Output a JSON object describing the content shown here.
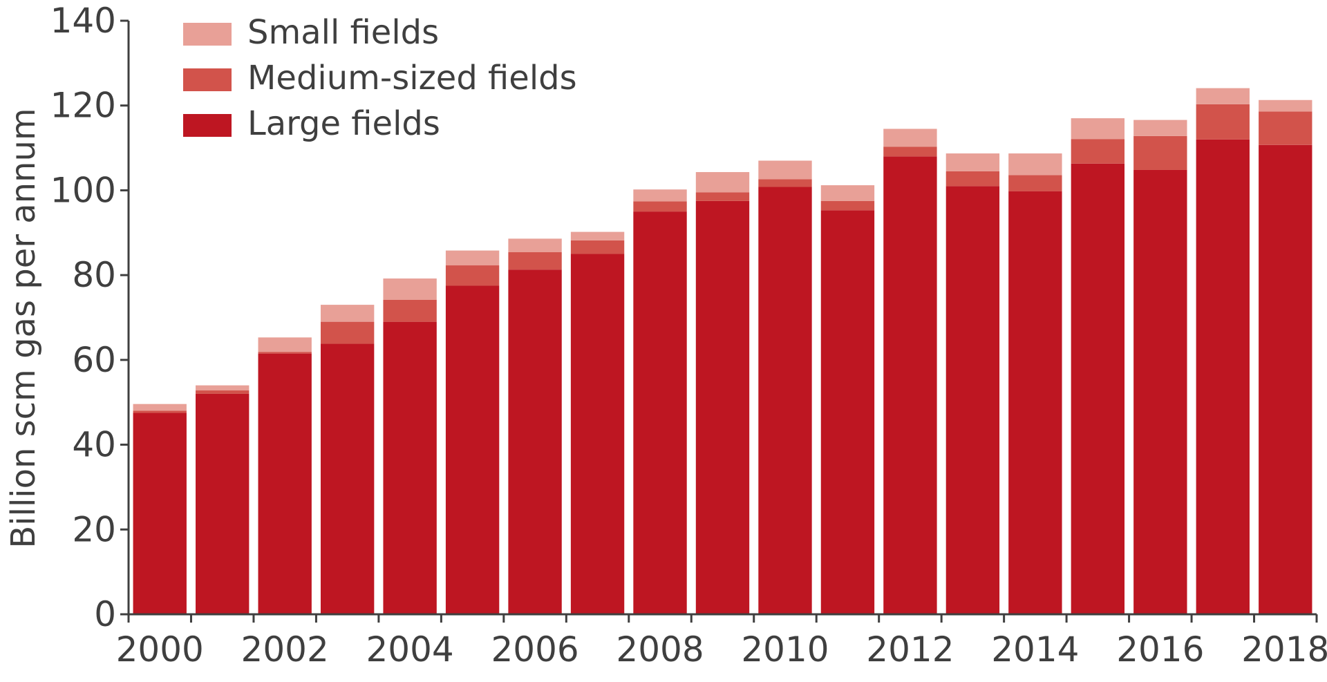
{
  "chart_data": {
    "type": "bar",
    "stacked": true,
    "categories": [
      "2000",
      "2001",
      "2002",
      "2003",
      "2004",
      "2005",
      "2006",
      "2007",
      "2008",
      "2009",
      "2010",
      "2011",
      "2012",
      "2013",
      "2014",
      "2015",
      "2016",
      "2017",
      "2018"
    ],
    "x_tick_labels": [
      "2000",
      "2002",
      "2004",
      "2006",
      "2008",
      "2010",
      "2012",
      "2014",
      "2016",
      "2018"
    ],
    "series": [
      {
        "name": "Large fields",
        "color": "#be1622",
        "values": [
          47.5,
          52.0,
          61.5,
          63.8,
          69.0,
          77.5,
          81.3,
          85.0,
          95.0,
          97.5,
          100.8,
          95.3,
          108.0,
          101.0,
          99.8,
          106.3,
          104.8,
          112.0,
          110.7
        ]
      },
      {
        "name": "Medium-sized fields",
        "color": "#d2534b",
        "values": [
          0.5,
          0.8,
          0.4,
          5.2,
          5.2,
          4.8,
          4.1,
          3.2,
          2.4,
          2.0,
          1.8,
          2.2,
          2.3,
          3.5,
          3.8,
          5.8,
          8.0,
          8.3,
          7.9
        ]
      },
      {
        "name": "Small fields",
        "color": "#e8a097",
        "values": [
          1.6,
          1.2,
          3.4,
          4.0,
          5.0,
          3.5,
          3.2,
          2.0,
          2.8,
          4.8,
          4.4,
          3.7,
          4.2,
          4.2,
          5.1,
          4.9,
          3.8,
          3.8,
          2.7
        ]
      }
    ],
    "legend_order": [
      "Small fields",
      "Medium-sized fields",
      "Large fields"
    ],
    "legend_position": "top-left",
    "xlabel": "",
    "ylabel": "Billion scm gas per annum",
    "ylim": [
      0,
      140
    ],
    "yticks": [
      0,
      20,
      40,
      60,
      80,
      100,
      120,
      140
    ],
    "grid": false
  }
}
